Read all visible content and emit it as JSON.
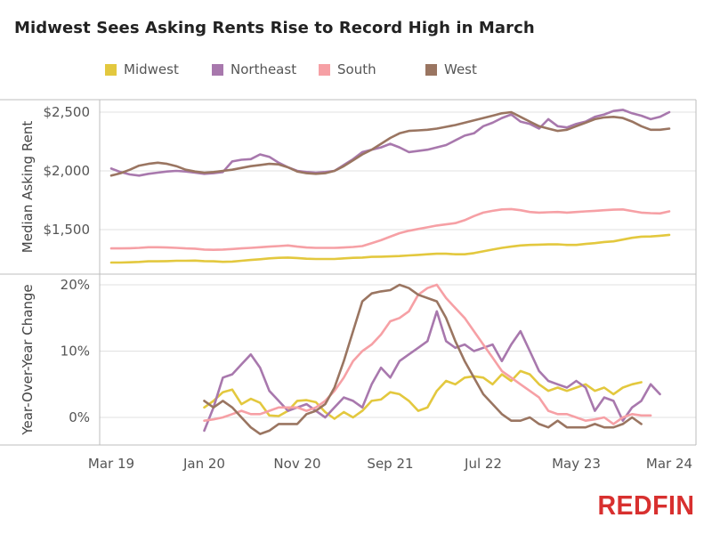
{
  "title": "Midwest Sees Asking Rents Rise to Record High in March",
  "logo": "REDFIN",
  "colors": {
    "Midwest": "#e3c83e",
    "Northeast": "#a878ad",
    "South": "#f6a0a5",
    "West": "#9a7561",
    "grid": "#e1e1e1",
    "frame": "#bdbdbd",
    "logo": "#d8302f"
  },
  "chart_data": [
    {
      "type": "line",
      "ylabel": "Median Asking Rent",
      "yticks": [
        1500,
        2000,
        2500
      ],
      "ytick_labels": [
        "$1,500",
        "$2,000",
        "$2,500"
      ],
      "ylim": [
        1240,
        2610
      ],
      "x": "monthly, Mar 2019 to Mar 2024 (61 points)",
      "series": [
        {
          "name": "Midwest",
          "values": [
            1220,
            1220,
            1222,
            1225,
            1230,
            1230,
            1232,
            1235,
            1235,
            1236,
            1232,
            1230,
            1226,
            1228,
            1235,
            1242,
            1248,
            1255,
            1260,
            1262,
            1258,
            1252,
            1250,
            1250,
            1250,
            1255,
            1260,
            1262,
            1268,
            1270,
            1272,
            1275,
            1280,
            1285,
            1290,
            1295,
            1295,
            1290,
            1290,
            1300,
            1315,
            1330,
            1345,
            1355,
            1365,
            1370,
            1372,
            1374,
            1375,
            1370,
            1370,
            1378,
            1385,
            1395,
            1400,
            1415,
            1430,
            1440,
            1442,
            1448,
            1455
          ]
        },
        {
          "name": "Northeast",
          "values": [
            2020,
            1990,
            1970,
            1960,
            1975,
            1985,
            1995,
            2000,
            1995,
            1985,
            1975,
            1980,
            1990,
            2080,
            2095,
            2100,
            2140,
            2120,
            2070,
            2030,
            2000,
            1990,
            1985,
            1990,
            2000,
            2050,
            2100,
            2160,
            2180,
            2200,
            2230,
            2200,
            2160,
            2170,
            2180,
            2200,
            2220,
            2260,
            2300,
            2320,
            2380,
            2410,
            2450,
            2480,
            2420,
            2400,
            2360,
            2440,
            2380,
            2370,
            2400,
            2420,
            2460,
            2480,
            2510,
            2520,
            2490,
            2470,
            2440,
            2460,
            2500
          ]
        },
        {
          "name": "South",
          "values": [
            1340,
            1340,
            1342,
            1345,
            1350,
            1350,
            1348,
            1345,
            1340,
            1338,
            1330,
            1328,
            1330,
            1335,
            1340,
            1345,
            1350,
            1355,
            1360,
            1365,
            1355,
            1348,
            1345,
            1345,
            1345,
            1348,
            1352,
            1360,
            1385,
            1410,
            1440,
            1470,
            1490,
            1505,
            1520,
            1535,
            1545,
            1555,
            1580,
            1615,
            1645,
            1660,
            1672,
            1675,
            1665,
            1650,
            1645,
            1648,
            1650,
            1645,
            1650,
            1655,
            1660,
            1665,
            1670,
            1672,
            1658,
            1645,
            1640,
            1638,
            1655
          ]
        },
        {
          "name": "West",
          "values": [
            1960,
            1980,
            2010,
            2045,
            2060,
            2070,
            2060,
            2040,
            2010,
            1995,
            1985,
            1990,
            2000,
            2010,
            2025,
            2040,
            2050,
            2060,
            2055,
            2030,
            1995,
            1980,
            1975,
            1980,
            2000,
            2040,
            2090,
            2140,
            2180,
            2230,
            2280,
            2320,
            2340,
            2345,
            2350,
            2360,
            2375,
            2390,
            2410,
            2430,
            2450,
            2470,
            2490,
            2500,
            2460,
            2420,
            2380,
            2360,
            2340,
            2350,
            2380,
            2410,
            2440,
            2455,
            2460,
            2450,
            2420,
            2380,
            2350,
            2350,
            2360
          ]
        }
      ]
    },
    {
      "type": "line",
      "ylabel": "Year-Over-Year Change",
      "yticks": [
        0,
        10,
        20
      ],
      "ytick_labels": [
        "0%",
        "10%",
        "20%"
      ],
      "ylim": [
        -4.2,
        21.6
      ],
      "xtick_labels": [
        "Mar 19",
        "Jan 20",
        "Nov 20",
        "Sep 21",
        "Jul 22",
        "May 23",
        "Mar 24"
      ],
      "xtick_index": [
        0,
        10,
        20,
        30,
        40,
        50,
        60
      ],
      "x": "monthly, Mar 2019 to Mar 2024 (61 points)",
      "series": [
        {
          "name": "Midwest",
          "values": [
            null,
            null,
            null,
            null,
            null,
            null,
            null,
            null,
            null,
            null,
            1.5,
            2.5,
            3.8,
            4.2,
            2.0,
            2.8,
            2.2,
            0.3,
            0.2,
            1.0,
            2.5,
            2.6,
            2.3,
            0.8,
            -0.2,
            0.8,
            0.0,
            1.0,
            2.5,
            2.7,
            3.8,
            3.5,
            2.5,
            1.0,
            1.5,
            4.0,
            5.5,
            5.0,
            6.0,
            6.2,
            6.0,
            5.0,
            6.5,
            5.5,
            7.0,
            6.5,
            5.0,
            4.0,
            4.5,
            4.0,
            4.5,
            5.0,
            4.0,
            4.5,
            3.5,
            4.5,
            5.0,
            5.3,
            null,
            null,
            null
          ]
        },
        {
          "name": "Northeast",
          "values": [
            null,
            null,
            null,
            null,
            null,
            null,
            null,
            null,
            null,
            null,
            -2.0,
            1.5,
            6.0,
            6.5,
            8.0,
            9.5,
            7.5,
            4.0,
            2.5,
            1.0,
            1.5,
            2.0,
            1.0,
            0.0,
            1.5,
            3.0,
            2.5,
            1.5,
            5.0,
            7.5,
            6.0,
            8.5,
            9.5,
            10.5,
            11.5,
            16.0,
            11.5,
            10.5,
            11.0,
            10.0,
            10.5,
            11.0,
            8.5,
            11.0,
            13.0,
            10.0,
            7.0,
            5.5,
            5.0,
            4.5,
            5.5,
            4.5,
            1.0,
            3.0,
            2.5,
            -0.5,
            1.5,
            2.5,
            5.0,
            3.5,
            null
          ]
        },
        {
          "name": "South",
          "values": [
            null,
            null,
            null,
            null,
            null,
            null,
            null,
            null,
            null,
            null,
            -0.5,
            -0.3,
            0.0,
            0.5,
            1.0,
            0.5,
            0.5,
            1.0,
            1.5,
            1.5,
            1.5,
            1.0,
            1.5,
            2.5,
            4.0,
            6.0,
            8.5,
            10.0,
            11.0,
            12.5,
            14.5,
            15.0,
            16.0,
            18.5,
            19.5,
            20.0,
            18.0,
            16.5,
            15.0,
            13.0,
            11.0,
            9.0,
            7.0,
            6.0,
            5.0,
            4.0,
            3.0,
            1.0,
            0.5,
            0.5,
            0.0,
            -0.5,
            -0.3,
            0.0,
            -1.0,
            0.0,
            0.5,
            0.3,
            0.3,
            null,
            null
          ]
        },
        {
          "name": "West",
          "values": [
            null,
            null,
            null,
            null,
            null,
            null,
            null,
            null,
            null,
            null,
            2.5,
            1.5,
            2.5,
            1.5,
            0.0,
            -1.5,
            -2.5,
            -2.0,
            -1.0,
            -1.0,
            -1.0,
            0.5,
            1.0,
            2.0,
            4.5,
            8.5,
            13.0,
            17.5,
            18.7,
            19.0,
            19.2,
            20.0,
            19.5,
            18.5,
            18.0,
            17.5,
            15.0,
            11.5,
            8.5,
            6.0,
            3.5,
            2.0,
            0.5,
            -0.5,
            -0.5,
            0.0,
            -1.0,
            -1.5,
            -0.5,
            -1.5,
            -1.5,
            -1.5,
            -1.0,
            -1.5,
            -1.5,
            -1.0,
            0.0,
            -1.0,
            null,
            null,
            null
          ]
        }
      ]
    }
  ]
}
